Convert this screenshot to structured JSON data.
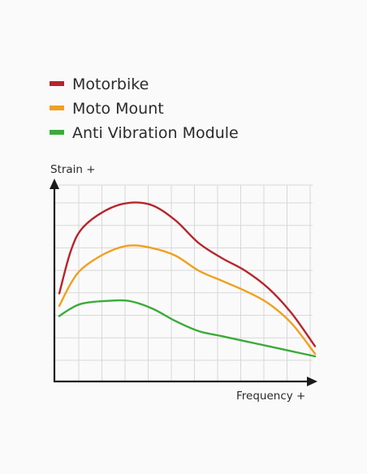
{
  "chart_data": {
    "type": "line",
    "title": "",
    "xlabel": "Frequency +",
    "ylabel": "Strain +",
    "grid": true,
    "legend_position": "top-left",
    "xlim": [
      0,
      11
    ],
    "ylim": [
      0,
      8
    ],
    "series": [
      {
        "name": "Motorbike",
        "color": "#b5262b",
        "points": [
          [
            0,
            3.5
          ],
          [
            0.5,
            5.2
          ],
          [
            1,
            6.1
          ],
          [
            2,
            6.8
          ],
          [
            3,
            7.1
          ],
          [
            4,
            7.0
          ],
          [
            5,
            6.4
          ],
          [
            6,
            5.5
          ],
          [
            7,
            4.9
          ],
          [
            8,
            4.4
          ],
          [
            9,
            3.7
          ],
          [
            10,
            2.7
          ],
          [
            11,
            1.4
          ]
        ]
      },
      {
        "name": "Moto Mount",
        "color": "#f0a020",
        "points": [
          [
            0,
            3.0
          ],
          [
            0.5,
            3.9
          ],
          [
            1,
            4.5
          ],
          [
            2,
            5.1
          ],
          [
            3,
            5.4
          ],
          [
            4,
            5.3
          ],
          [
            5,
            5.0
          ],
          [
            6,
            4.4
          ],
          [
            7,
            4.0
          ],
          [
            8,
            3.6
          ],
          [
            9,
            3.1
          ],
          [
            10,
            2.3
          ],
          [
            11,
            1.1
          ]
        ]
      },
      {
        "name": "Anti Vibration Module",
        "color": "#3aab3a",
        "points": [
          [
            0,
            2.6
          ],
          [
            0.5,
            2.9
          ],
          [
            1,
            3.1
          ],
          [
            2,
            3.2
          ],
          [
            3,
            3.2
          ],
          [
            4,
            2.9
          ],
          [
            5,
            2.4
          ],
          [
            6,
            2.0
          ],
          [
            7,
            1.8
          ],
          [
            8,
            1.6
          ],
          [
            9,
            1.4
          ],
          [
            10,
            1.2
          ],
          [
            11,
            1.0
          ]
        ]
      }
    ]
  }
}
